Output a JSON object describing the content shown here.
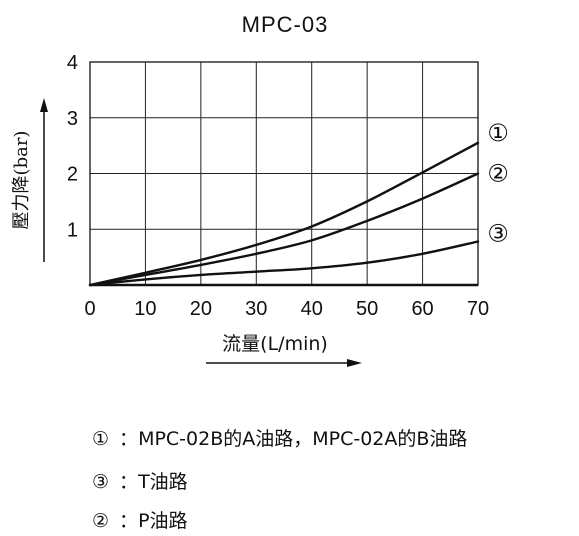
{
  "chart_data": {
    "type": "line",
    "title": "MPC-03",
    "xlabel": "流量(L/min)",
    "ylabel": "壓力降(bar)",
    "xlim": [
      0,
      70
    ],
    "ylim": [
      0,
      4
    ],
    "xticks": [
      "0",
      "10",
      "20",
      "30",
      "40",
      "50",
      "60",
      "70"
    ],
    "yticks": [
      "1",
      "2",
      "3",
      "4"
    ],
    "grid": true,
    "x": [
      0,
      10,
      20,
      30,
      40,
      50,
      60,
      70
    ],
    "series": [
      {
        "name": "①",
        "values": [
          0,
          0.22,
          0.45,
          0.72,
          1.05,
          1.5,
          2.02,
          2.55
        ]
      },
      {
        "name": "②",
        "values": [
          0,
          0.18,
          0.36,
          0.56,
          0.8,
          1.15,
          1.55,
          2.0
        ]
      },
      {
        "name": "③",
        "values": [
          0,
          0.1,
          0.18,
          0.24,
          0.3,
          0.4,
          0.56,
          0.78
        ]
      }
    ]
  },
  "legend": [
    {
      "marker": "①",
      "sep": "：",
      "text": "MPC-02B的A油路，MPC-02A的B油路"
    },
    {
      "marker": "③",
      "sep": "：",
      "text": "T油路"
    },
    {
      "marker": "②",
      "sep": "：",
      "text": "P油路"
    }
  ],
  "colors": {
    "ink": "#111111",
    "grid": "#222222"
  }
}
